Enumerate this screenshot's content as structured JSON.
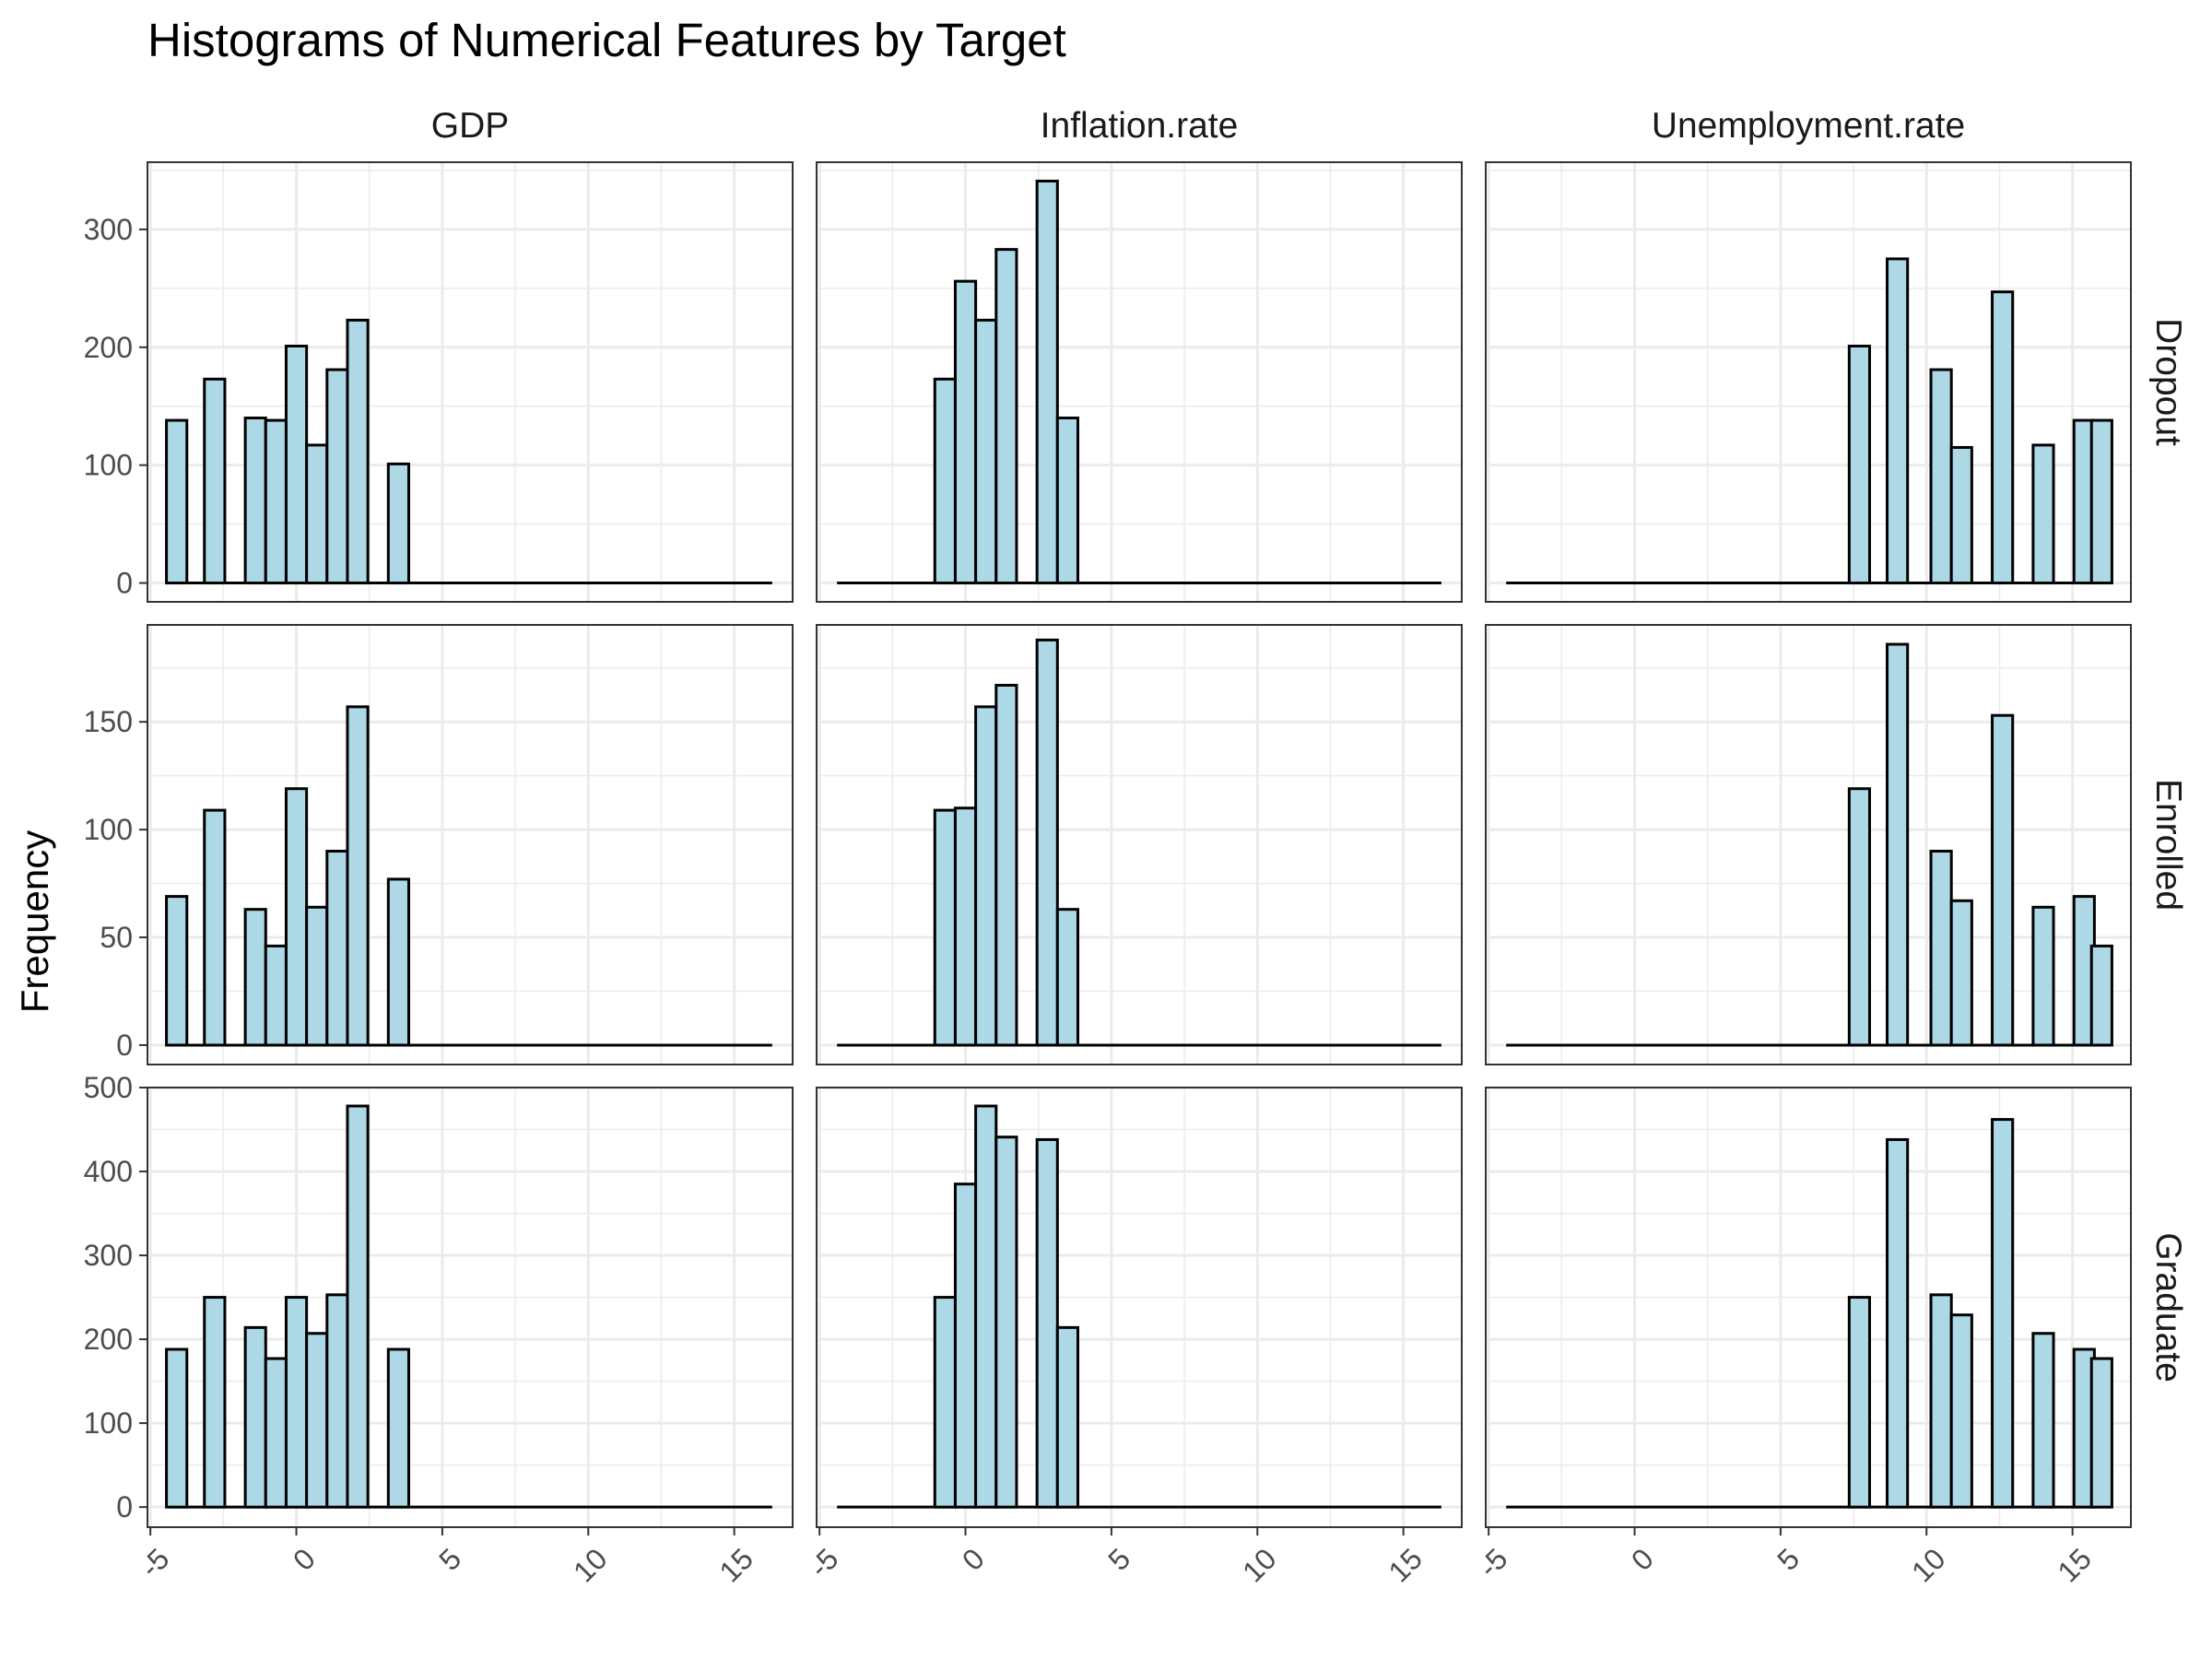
{
  "title": "Histograms of Numerical Features by Target",
  "ylabel": "Frequency",
  "xlabel": "",
  "columns": [
    "GDP",
    "Inflation.rate",
    "Unemployment.rate"
  ],
  "rows": [
    "Dropout",
    "Enrolled",
    "Graduate"
  ],
  "colors": {
    "bar_fill": "#add8e6",
    "bar_stroke": "#000000",
    "grid": "#ebebeb",
    "panel_border": "#333333"
  },
  "chart_data": {
    "type": "bar",
    "style": "faceted histogram",
    "grid": true,
    "bin_width": 0.7,
    "xlim": [
      -5.1,
      17.0
    ],
    "x_ticks": [
      -5,
      0,
      5,
      10,
      15
    ],
    "x_tick_labels": [
      "-5",
      "0",
      "5",
      "10",
      "15"
    ],
    "x_range_drawn": [
      -4.4,
      16.3
    ],
    "row_ylim": {
      "Dropout": [
        -16,
        357
      ],
      "Enrolled": [
        -9,
        195
      ],
      "Graduate": [
        -24,
        500
      ]
    },
    "row_yticks": {
      "Dropout": [
        0,
        100,
        200,
        300
      ],
      "Enrolled": [
        0,
        50,
        100,
        150
      ],
      "Graduate": [
        0,
        100,
        200,
        300,
        400,
        500
      ]
    },
    "series": [
      {
        "row": "Dropout",
        "column": "GDP",
        "bars": [
          {
            "x": -4.1,
            "y": 138
          },
          {
            "x": -2.8,
            "y": 173
          },
          {
            "x": -1.4,
            "y": 140
          },
          {
            "x": -0.7,
            "y": 138
          },
          {
            "x": 0.0,
            "y": 201
          },
          {
            "x": 0.7,
            "y": 117
          },
          {
            "x": 1.4,
            "y": 181
          },
          {
            "x": 2.1,
            "y": 223
          },
          {
            "x": 3.5,
            "y": 101
          }
        ]
      },
      {
        "row": "Dropout",
        "column": "Inflation.rate",
        "bars": [
          {
            "x": -0.7,
            "y": 173
          },
          {
            "x": 0.0,
            "y": 256
          },
          {
            "x": 0.7,
            "y": 223
          },
          {
            "x": 1.4,
            "y": 283
          },
          {
            "x": 2.8,
            "y": 341
          },
          {
            "x": 3.5,
            "y": 140
          }
        ]
      },
      {
        "row": "Dropout",
        "column": "Unemployment.rate",
        "bars": [
          {
            "x": 7.7,
            "y": 201
          },
          {
            "x": 9.0,
            "y": 275
          },
          {
            "x": 10.5,
            "y": 181
          },
          {
            "x": 11.2,
            "y": 115
          },
          {
            "x": 12.6,
            "y": 247
          },
          {
            "x": 14.0,
            "y": 117
          },
          {
            "x": 15.4,
            "y": 138
          },
          {
            "x": 16.0,
            "y": 138
          }
        ]
      },
      {
        "row": "Enrolled",
        "column": "GDP",
        "bars": [
          {
            "x": -4.1,
            "y": 69
          },
          {
            "x": -2.8,
            "y": 109
          },
          {
            "x": -1.4,
            "y": 63
          },
          {
            "x": -0.7,
            "y": 46
          },
          {
            "x": 0.0,
            "y": 119
          },
          {
            "x": 0.7,
            "y": 64
          },
          {
            "x": 1.4,
            "y": 90
          },
          {
            "x": 2.1,
            "y": 157
          },
          {
            "x": 3.5,
            "y": 77
          }
        ]
      },
      {
        "row": "Enrolled",
        "column": "Inflation.rate",
        "bars": [
          {
            "x": -0.7,
            "y": 109
          },
          {
            "x": 0.0,
            "y": 110
          },
          {
            "x": 0.7,
            "y": 157
          },
          {
            "x": 1.4,
            "y": 167
          },
          {
            "x": 2.8,
            "y": 188
          },
          {
            "x": 3.5,
            "y": 63
          }
        ]
      },
      {
        "row": "Enrolled",
        "column": "Unemployment.rate",
        "bars": [
          {
            "x": 7.7,
            "y": 119
          },
          {
            "x": 9.0,
            "y": 186
          },
          {
            "x": 10.5,
            "y": 90
          },
          {
            "x": 11.2,
            "y": 67
          },
          {
            "x": 12.6,
            "y": 153
          },
          {
            "x": 14.0,
            "y": 64
          },
          {
            "x": 15.4,
            "y": 69
          },
          {
            "x": 16.0,
            "y": 46
          }
        ]
      },
      {
        "row": "Graduate",
        "column": "GDP",
        "bars": [
          {
            "x": -4.1,
            "y": 188
          },
          {
            "x": -2.8,
            "y": 250
          },
          {
            "x": -1.4,
            "y": 214
          },
          {
            "x": -0.7,
            "y": 177
          },
          {
            "x": 0.0,
            "y": 250
          },
          {
            "x": 0.7,
            "y": 207
          },
          {
            "x": 1.4,
            "y": 253
          },
          {
            "x": 2.1,
            "y": 478
          },
          {
            "x": 3.5,
            "y": 188
          }
        ]
      },
      {
        "row": "Graduate",
        "column": "Inflation.rate",
        "bars": [
          {
            "x": -0.7,
            "y": 250
          },
          {
            "x": 0.0,
            "y": 385
          },
          {
            "x": 0.7,
            "y": 478
          },
          {
            "x": 1.4,
            "y": 441
          },
          {
            "x": 2.8,
            "y": 438
          },
          {
            "x": 3.5,
            "y": 214
          }
        ]
      },
      {
        "row": "Graduate",
        "column": "Unemployment.rate",
        "bars": [
          {
            "x": 7.7,
            "y": 250
          },
          {
            "x": 9.0,
            "y": 438
          },
          {
            "x": 10.5,
            "y": 253
          },
          {
            "x": 11.2,
            "y": 229
          },
          {
            "x": 12.6,
            "y": 462
          },
          {
            "x": 14.0,
            "y": 207
          },
          {
            "x": 15.4,
            "y": 188
          },
          {
            "x": 16.0,
            "y": 177
          }
        ]
      }
    ]
  }
}
